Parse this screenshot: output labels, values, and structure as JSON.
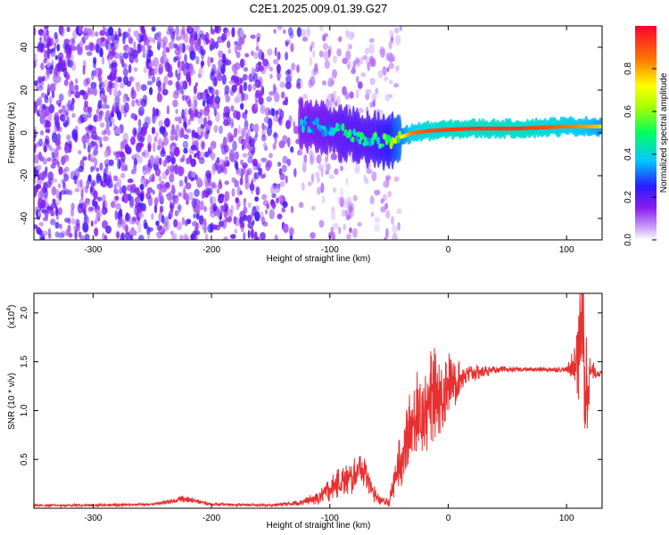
{
  "chart_data": [
    {
      "type": "heatmap",
      "title": "C2E1.2025.009.01.39.G27",
      "xlabel": "Height of straight line (km)",
      "ylabel": "Frequency (Hz)",
      "xlim": [
        -350,
        130
      ],
      "ylim": [
        -50,
        50
      ],
      "xticks": [
        -300,
        -200,
        -100,
        0,
        100
      ],
      "yticks": [
        -40,
        -20,
        0,
        20,
        40
      ],
      "xtick_labels": [
        "-300",
        "-200",
        "-100",
        "0",
        "100"
      ],
      "ytick_labels": [
        "-40",
        "-20",
        "0",
        "20",
        "40"
      ],
      "colorbar": {
        "label": "Normalized spectral amplitude",
        "range": [
          0,
          1
        ],
        "ticks": [
          0.0,
          0.2,
          0.4,
          0.6,
          0.8
        ],
        "tick_labels": [
          "0.0",
          "0.2",
          "0.4",
          "0.6",
          "0.8"
        ]
      },
      "ridge": {
        "x": [
          -125,
          -110,
          -95,
          -80,
          -70,
          -60,
          -50,
          -40,
          -30,
          -15,
          0,
          20,
          40,
          60,
          80,
          100,
          120,
          130
        ],
        "y": [
          4,
          3,
          1,
          -1,
          -3,
          -4,
          -4,
          -2,
          0,
          1,
          1.5,
          2,
          2,
          2,
          2.5,
          3,
          3,
          3
        ],
        "amplitude": [
          0.35,
          0.38,
          0.42,
          0.45,
          0.45,
          0.48,
          0.55,
          0.7,
          0.85,
          0.9,
          0.92,
          0.92,
          0.92,
          0.92,
          0.9,
          0.85,
          0.8,
          0.75
        ]
      },
      "noise_regions": [
        {
          "x_range": [
            -350,
            -125
          ],
          "y_range": [
            -50,
            50
          ],
          "amplitude": 0.2,
          "density": "high"
        },
        {
          "x_range": [
            -125,
            -40
          ],
          "y_range": [
            -50,
            50
          ],
          "amplitude": 0.1,
          "density": "sparse"
        }
      ]
    },
    {
      "type": "line",
      "xlabel": "Height of straight line (km)",
      "ylabel": "SNR (10 * v/v)",
      "y_multiplier_label": "(x10",
      "y_multiplier_exp": "4",
      "y_multiplier_close": ")",
      "xlim": [
        -350,
        130
      ],
      "ylim": [
        0,
        2.2
      ],
      "xticks": [
        -300,
        -200,
        -100,
        0,
        100
      ],
      "yticks": [
        0.5,
        1.0,
        1.5,
        2.0
      ],
      "xtick_labels": [
        "-300",
        "-200",
        "-100",
        "0",
        "100"
      ],
      "ytick_labels": [
        "0.5",
        "1.0",
        "1.5",
        "2.0"
      ],
      "color": "#e83030",
      "series": [
        {
          "name": "SNR",
          "x": [
            -350,
            -300,
            -250,
            -230,
            -225,
            -200,
            -150,
            -130,
            -110,
            -100,
            -90,
            -80,
            -75,
            -70,
            -65,
            -60,
            -50,
            -45,
            -40,
            -35,
            -30,
            -25,
            -20,
            -15,
            -10,
            -5,
            0,
            5,
            10,
            20,
            30,
            40,
            60,
            80,
            100,
            105,
            110,
            113,
            116,
            120,
            130
          ],
          "y": [
            0.03,
            0.03,
            0.04,
            0.08,
            0.1,
            0.04,
            0.03,
            0.05,
            0.1,
            0.2,
            0.28,
            0.3,
            0.45,
            0.35,
            0.2,
            0.1,
            0.05,
            0.3,
            0.5,
            0.7,
            0.9,
            1.0,
            0.95,
            1.1,
            1.2,
            1.15,
            1.3,
            1.25,
            1.35,
            1.38,
            1.4,
            1.42,
            1.42,
            1.42,
            1.42,
            1.45,
            1.6,
            2.0,
            1.2,
            1.4,
            1.38
          ],
          "noise": [
            0.01,
            0.01,
            0.01,
            0.02,
            0.03,
            0.01,
            0.01,
            0.02,
            0.05,
            0.1,
            0.12,
            0.15,
            0.12,
            0.12,
            0.1,
            0.05,
            0.03,
            0.15,
            0.25,
            0.3,
            0.3,
            0.35,
            0.35,
            0.4,
            0.35,
            0.3,
            0.25,
            0.2,
            0.12,
            0.07,
            0.05,
            0.03,
            0.02,
            0.02,
            0.02,
            0.15,
            0.4,
            0.6,
            0.6,
            0.1,
            0.02
          ]
        }
      ]
    }
  ]
}
